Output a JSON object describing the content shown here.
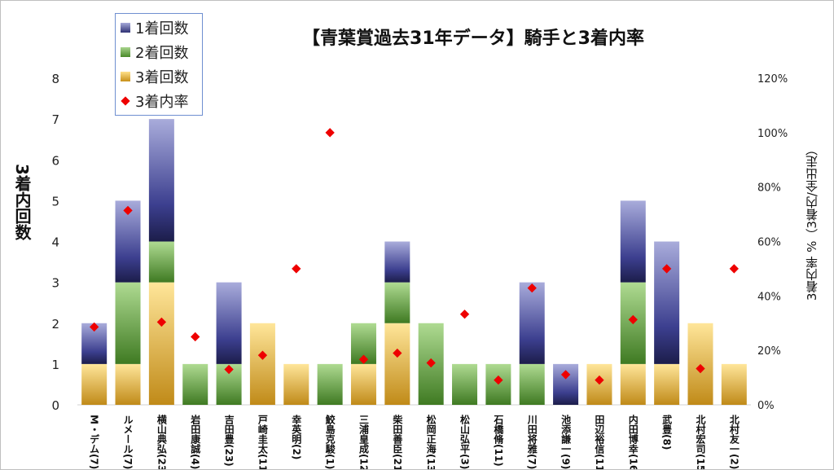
{
  "chart_data": {
    "type": "bar",
    "title": "【青葉賞過去31年データ】騎手と3着内率",
    "ylabel": "3着内回数",
    "y2label": "3着内率 %（3着内/全出走）",
    "ylim": [
      0,
      8
    ],
    "y2lim": [
      0,
      1.2
    ],
    "yticks": [
      "0",
      "1",
      "2",
      "3",
      "4",
      "5",
      "6",
      "7",
      "8"
    ],
    "y2ticks": [
      "0%",
      "20%",
      "40%",
      "60%",
      "80%",
      "100%",
      "120%"
    ],
    "legend_position": "top-left",
    "categories": [
      "M・デム(7)",
      "ルメール(7)",
      "横山典弘(23)",
      "岩田康誠(4)",
      "吉田豊(23)",
      "戸崎圭太(11)",
      "幸英明(2)",
      "鮫島克駿(1)",
      "三浦皇成(12)",
      "柴田善臣(21)",
      "松岡正海(13)",
      "松山弘平(3)",
      "石橋脩(11)",
      "川田将雅(7)",
      "池添謙一(9)",
      "田辺裕信(11)",
      "内田博幸(16)",
      "武豊(8)",
      "北村宏司(15)",
      "北村友一(2)"
    ],
    "series": [
      {
        "name": "3着回数",
        "type": "stacked-bar",
        "color": "#d9a520",
        "values": [
          1,
          1,
          3,
          0,
          0,
          2,
          1,
          0,
          1,
          2,
          0,
          0,
          0,
          0,
          0,
          1,
          1,
          1,
          2,
          1
        ]
      },
      {
        "name": "2着回数",
        "type": "stacked-bar",
        "color": "#5f9e3a",
        "values": [
          0,
          2,
          1,
          1,
          1,
          0,
          0,
          1,
          1,
          1,
          2,
          1,
          1,
          1,
          0,
          0,
          2,
          0,
          0,
          0
        ]
      },
      {
        "name": "1着回数",
        "type": "stacked-bar",
        "color": "#3c3f8f",
        "values": [
          1,
          2,
          3,
          0,
          2,
          0,
          0,
          0,
          0,
          1,
          0,
          0,
          0,
          2,
          1,
          0,
          2,
          3,
          0,
          0
        ]
      },
      {
        "name": "3着内率",
        "type": "scatter",
        "axis": "right",
        "color": "#ee0000",
        "values": [
          0.286,
          0.714,
          0.304,
          0.25,
          0.13,
          0.182,
          0.5,
          1.0,
          0.167,
          0.19,
          0.154,
          0.333,
          0.091,
          0.429,
          0.111,
          0.091,
          0.313,
          0.5,
          0.133,
          0.5
        ]
      }
    ],
    "legend": [
      "1着回数",
      "2着回数",
      "3着回数",
      "3着内率"
    ]
  }
}
